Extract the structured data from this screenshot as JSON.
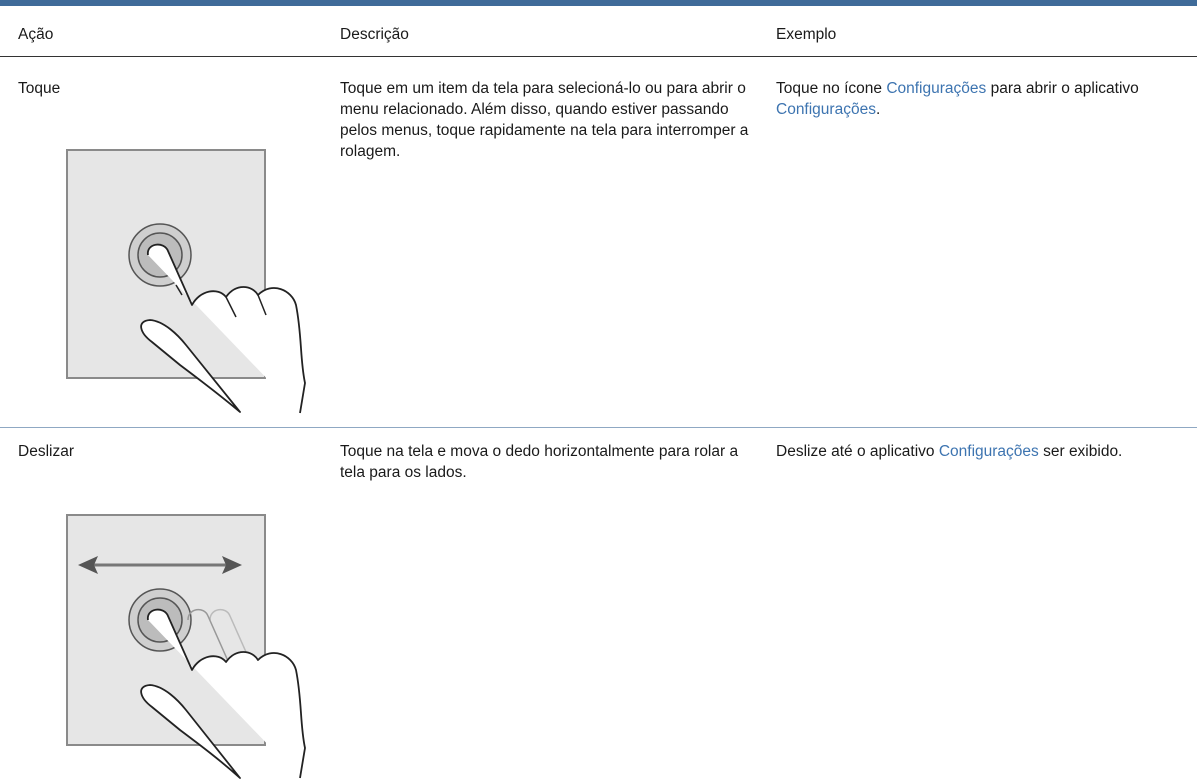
{
  "table": {
    "header": [
      "Ação",
      "Descrição",
      "Exemplo"
    ],
    "rows": [
      {
        "action": "Toque",
        "description": "Toque em um item da tela para selecioná-lo ou para abrir o menu relacionado. Além disso, quando estiver passando pelos menus, toque rapidamente na tela para interromper a rolagem.",
        "example": [
          "Toque no ícone ",
          "Configurações",
          " para abrir o aplicativo ",
          "Configurações",
          "."
        ]
      },
      {
        "action": "Deslizar",
        "description": "Toque na tela e mova o dedo horizontalmente para rolar a tela para os lados.",
        "example": [
          "Deslize até o aplicativo ",
          "Configurações",
          " ser exibido."
        ]
      }
    ]
  }
}
